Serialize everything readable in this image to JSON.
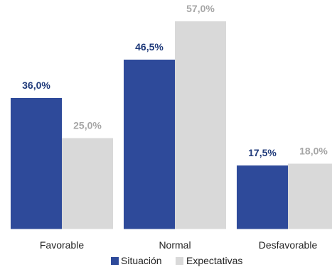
{
  "chart_data": {
    "type": "bar",
    "categories": [
      "Favorable",
      "Normal",
      "Desfavorable"
    ],
    "series": [
      {
        "name": "Situación",
        "values": [
          36.0,
          46.5,
          17.5
        ],
        "labels": [
          "36,0%",
          "46,5%",
          "17,5%"
        ],
        "color": "#2e4a9a",
        "label_color": "#1f3a7a"
      },
      {
        "name": "Expectativas",
        "values": [
          25.0,
          57.0,
          18.0
        ],
        "labels": [
          "25,0%",
          "57,0%",
          "18,0%"
        ],
        "color": "#d9d9d9",
        "label_color": "#a6a6a6"
      }
    ],
    "ylim": [
      0,
      60
    ],
    "legend": "bottom",
    "grid": false,
    "title": "",
    "xlabel": "",
    "ylabel": ""
  }
}
